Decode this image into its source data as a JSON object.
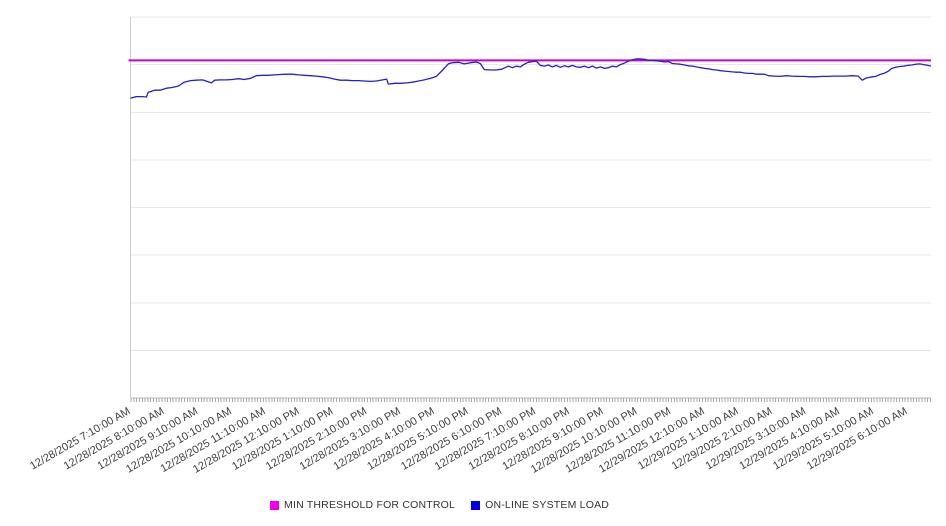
{
  "colors": {
    "threshold_line": "#CC00CC",
    "threshold_swatch": "#EE00EE",
    "load_line": "#2222CC",
    "load_swatch": "#0000E6",
    "grid": "#e8e8e8",
    "axis": "#b5b5b5",
    "tick": "#aaaaaa",
    "label_text": "#3f3f3f"
  },
  "chart_data": {
    "type": "line",
    "title": "",
    "xlabel": "",
    "ylabel": "",
    "grid": true,
    "legend_position": "bottom-center",
    "y_axis_labels_visible": false,
    "ylim": [
      0,
      100
    ],
    "y_units": "relative (no y-axis labels shown in source chart)",
    "gridline_values": [
      0,
      12.5,
      25,
      37.5,
      50,
      62.5,
      75,
      87.5,
      100
    ],
    "x_minor_tick_interval_minutes": 5,
    "x_tick_labels": [
      "12/28/2025 7:10:00 AM",
      "12/28/2025 8:10:00 AM",
      "12/28/2025 9:10:00 AM",
      "12/28/2025 10:10:00 AM",
      "12/28/2025 11:10:00 AM",
      "12/28/2025 12:10:00 PM",
      "12/28/2025 1:10:00 PM",
      "12/28/2025 2:10:00 PM",
      "12/28/2025 3:10:00 PM",
      "12/28/2025 4:10:00 PM",
      "12/28/2025 5:10:00 PM",
      "12/28/2025 6:10:00 PM",
      "12/28/2025 7:10:00 PM",
      "12/28/2025 8:10:00 PM",
      "12/28/2025 9:10:00 PM",
      "12/28/2025 10:10:00 PM",
      "12/28/2025 11:10:00 PM",
      "12/29/2025 12:10:00 AM",
      "12/29/2025 1:10:00 AM",
      "12/29/2025 2:10:00 AM",
      "12/29/2025 3:10:00 AM",
      "12/29/2025 4:10:00 AM",
      "12/29/2025 5:10:00 AM",
      "12/29/2025 6:10:00 AM"
    ],
    "series": [
      {
        "name": "MIN THRESHOLD FOR CONTROL",
        "type": "hline",
        "color": "#CC00CC",
        "swatch_color": "#EE00EE",
        "value": 88.6
      },
      {
        "name": "ON-LINE SYSTEM LOAD",
        "type": "line",
        "color": "#2222CC",
        "swatch_color": "#0000E6",
        "points_format": "[fraction_of_x_range, value]",
        "points": [
          [
            0.0,
            78.7
          ],
          [
            0.007,
            79.1
          ],
          [
            0.015,
            79.1
          ],
          [
            0.02,
            79.0
          ],
          [
            0.022,
            80.2
          ],
          [
            0.03,
            80.8
          ],
          [
            0.037,
            80.8
          ],
          [
            0.045,
            81.3
          ],
          [
            0.052,
            81.5
          ],
          [
            0.06,
            81.9
          ],
          [
            0.067,
            82.9
          ],
          [
            0.075,
            83.3
          ],
          [
            0.082,
            83.4
          ],
          [
            0.09,
            83.5
          ],
          [
            0.097,
            83.0
          ],
          [
            0.101,
            82.7
          ],
          [
            0.105,
            83.4
          ],
          [
            0.112,
            83.5
          ],
          [
            0.12,
            83.5
          ],
          [
            0.127,
            83.6
          ],
          [
            0.135,
            83.8
          ],
          [
            0.142,
            83.6
          ],
          [
            0.15,
            83.9
          ],
          [
            0.157,
            84.6
          ],
          [
            0.165,
            84.7
          ],
          [
            0.172,
            84.7
          ],
          [
            0.18,
            84.8
          ],
          [
            0.187,
            84.9
          ],
          [
            0.195,
            85.0
          ],
          [
            0.202,
            85.0
          ],
          [
            0.21,
            84.8
          ],
          [
            0.217,
            84.7
          ],
          [
            0.225,
            84.6
          ],
          [
            0.232,
            84.5
          ],
          [
            0.24,
            84.3
          ],
          [
            0.247,
            84.1
          ],
          [
            0.255,
            83.7
          ],
          [
            0.262,
            83.4
          ],
          [
            0.27,
            83.4
          ],
          [
            0.277,
            83.3
          ],
          [
            0.285,
            83.3
          ],
          [
            0.292,
            83.2
          ],
          [
            0.3,
            83.1
          ],
          [
            0.307,
            83.2
          ],
          [
            0.315,
            83.5
          ],
          [
            0.32,
            83.7
          ],
          [
            0.322,
            82.4
          ],
          [
            0.33,
            82.6
          ],
          [
            0.337,
            82.6
          ],
          [
            0.345,
            82.7
          ],
          [
            0.352,
            82.9
          ],
          [
            0.36,
            83.2
          ],
          [
            0.367,
            83.5
          ],
          [
            0.375,
            83.9
          ],
          [
            0.382,
            84.4
          ],
          [
            0.39,
            86.1
          ],
          [
            0.397,
            87.7
          ],
          [
            0.402,
            88.0
          ],
          [
            0.41,
            88.1
          ],
          [
            0.417,
            87.7
          ],
          [
            0.425,
            88.0
          ],
          [
            0.432,
            88.2
          ],
          [
            0.437,
            87.8
          ],
          [
            0.442,
            86.2
          ],
          [
            0.45,
            86.1
          ],
          [
            0.457,
            86.1
          ],
          [
            0.464,
            86.3
          ],
          [
            0.472,
            87.1
          ],
          [
            0.477,
            86.7
          ],
          [
            0.482,
            87.1
          ],
          [
            0.487,
            86.9
          ],
          [
            0.492,
            87.6
          ],
          [
            0.497,
            88.1
          ],
          [
            0.502,
            88.3
          ],
          [
            0.507,
            88.4
          ],
          [
            0.512,
            87.3
          ],
          [
            0.517,
            87.1
          ],
          [
            0.522,
            87.4
          ],
          [
            0.527,
            86.9
          ],
          [
            0.532,
            87.3
          ],
          [
            0.537,
            86.8
          ],
          [
            0.542,
            87.2
          ],
          [
            0.547,
            86.9
          ],
          [
            0.552,
            87.3
          ],
          [
            0.557,
            86.9
          ],
          [
            0.562,
            86.8
          ],
          [
            0.567,
            87.1
          ],
          [
            0.572,
            86.7
          ],
          [
            0.577,
            87.1
          ],
          [
            0.582,
            86.6
          ],
          [
            0.587,
            86.9
          ],
          [
            0.592,
            86.5
          ],
          [
            0.597,
            86.7
          ],
          [
            0.602,
            87.1
          ],
          [
            0.607,
            86.9
          ],
          [
            0.612,
            87.5
          ],
          [
            0.617,
            87.9
          ],
          [
            0.622,
            88.4
          ],
          [
            0.627,
            88.8
          ],
          [
            0.632,
            89.0
          ],
          [
            0.637,
            89.0
          ],
          [
            0.642,
            88.9
          ],
          [
            0.647,
            88.6
          ],
          [
            0.652,
            88.6
          ],
          [
            0.657,
            88.5
          ],
          [
            0.662,
            88.4
          ],
          [
            0.667,
            88.2
          ],
          [
            0.672,
            88.3
          ],
          [
            0.677,
            87.8
          ],
          [
            0.682,
            87.7
          ],
          [
            0.687,
            87.6
          ],
          [
            0.692,
            87.4
          ],
          [
            0.697,
            87.2
          ],
          [
            0.702,
            87.1
          ],
          [
            0.707,
            86.9
          ],
          [
            0.712,
            86.7
          ],
          [
            0.717,
            86.5
          ],
          [
            0.722,
            86.4
          ],
          [
            0.727,
            86.2
          ],
          [
            0.732,
            86.1
          ],
          [
            0.737,
            85.9
          ],
          [
            0.742,
            85.8
          ],
          [
            0.747,
            85.7
          ],
          [
            0.752,
            85.6
          ],
          [
            0.757,
            85.5
          ],
          [
            0.762,
            85.5
          ],
          [
            0.767,
            85.3
          ],
          [
            0.772,
            85.2
          ],
          [
            0.777,
            85.2
          ],
          [
            0.782,
            85.0
          ],
          [
            0.787,
            85.0
          ],
          [
            0.792,
            85.0
          ],
          [
            0.797,
            84.6
          ],
          [
            0.804,
            84.5
          ],
          [
            0.811,
            84.4
          ],
          [
            0.819,
            84.6
          ],
          [
            0.826,
            84.5
          ],
          [
            0.834,
            84.4
          ],
          [
            0.841,
            84.4
          ],
          [
            0.849,
            84.3
          ],
          [
            0.856,
            84.3
          ],
          [
            0.864,
            84.4
          ],
          [
            0.871,
            84.4
          ],
          [
            0.879,
            84.5
          ],
          [
            0.886,
            84.5
          ],
          [
            0.894,
            84.5
          ],
          [
            0.901,
            84.6
          ],
          [
            0.909,
            84.5
          ],
          [
            0.914,
            83.4
          ],
          [
            0.919,
            84.0
          ],
          [
            0.924,
            84.2
          ],
          [
            0.931,
            84.4
          ],
          [
            0.936,
            84.9
          ],
          [
            0.941,
            85.2
          ],
          [
            0.946,
            85.7
          ],
          [
            0.951,
            86.5
          ],
          [
            0.956,
            86.8
          ],
          [
            0.961,
            87.0
          ],
          [
            0.966,
            87.1
          ],
          [
            0.971,
            87.3
          ],
          [
            0.976,
            87.4
          ],
          [
            0.981,
            87.6
          ],
          [
            0.986,
            87.7
          ],
          [
            0.991,
            87.5
          ],
          [
            0.996,
            87.3
          ],
          [
            1.0,
            87.1
          ]
        ]
      }
    ]
  }
}
